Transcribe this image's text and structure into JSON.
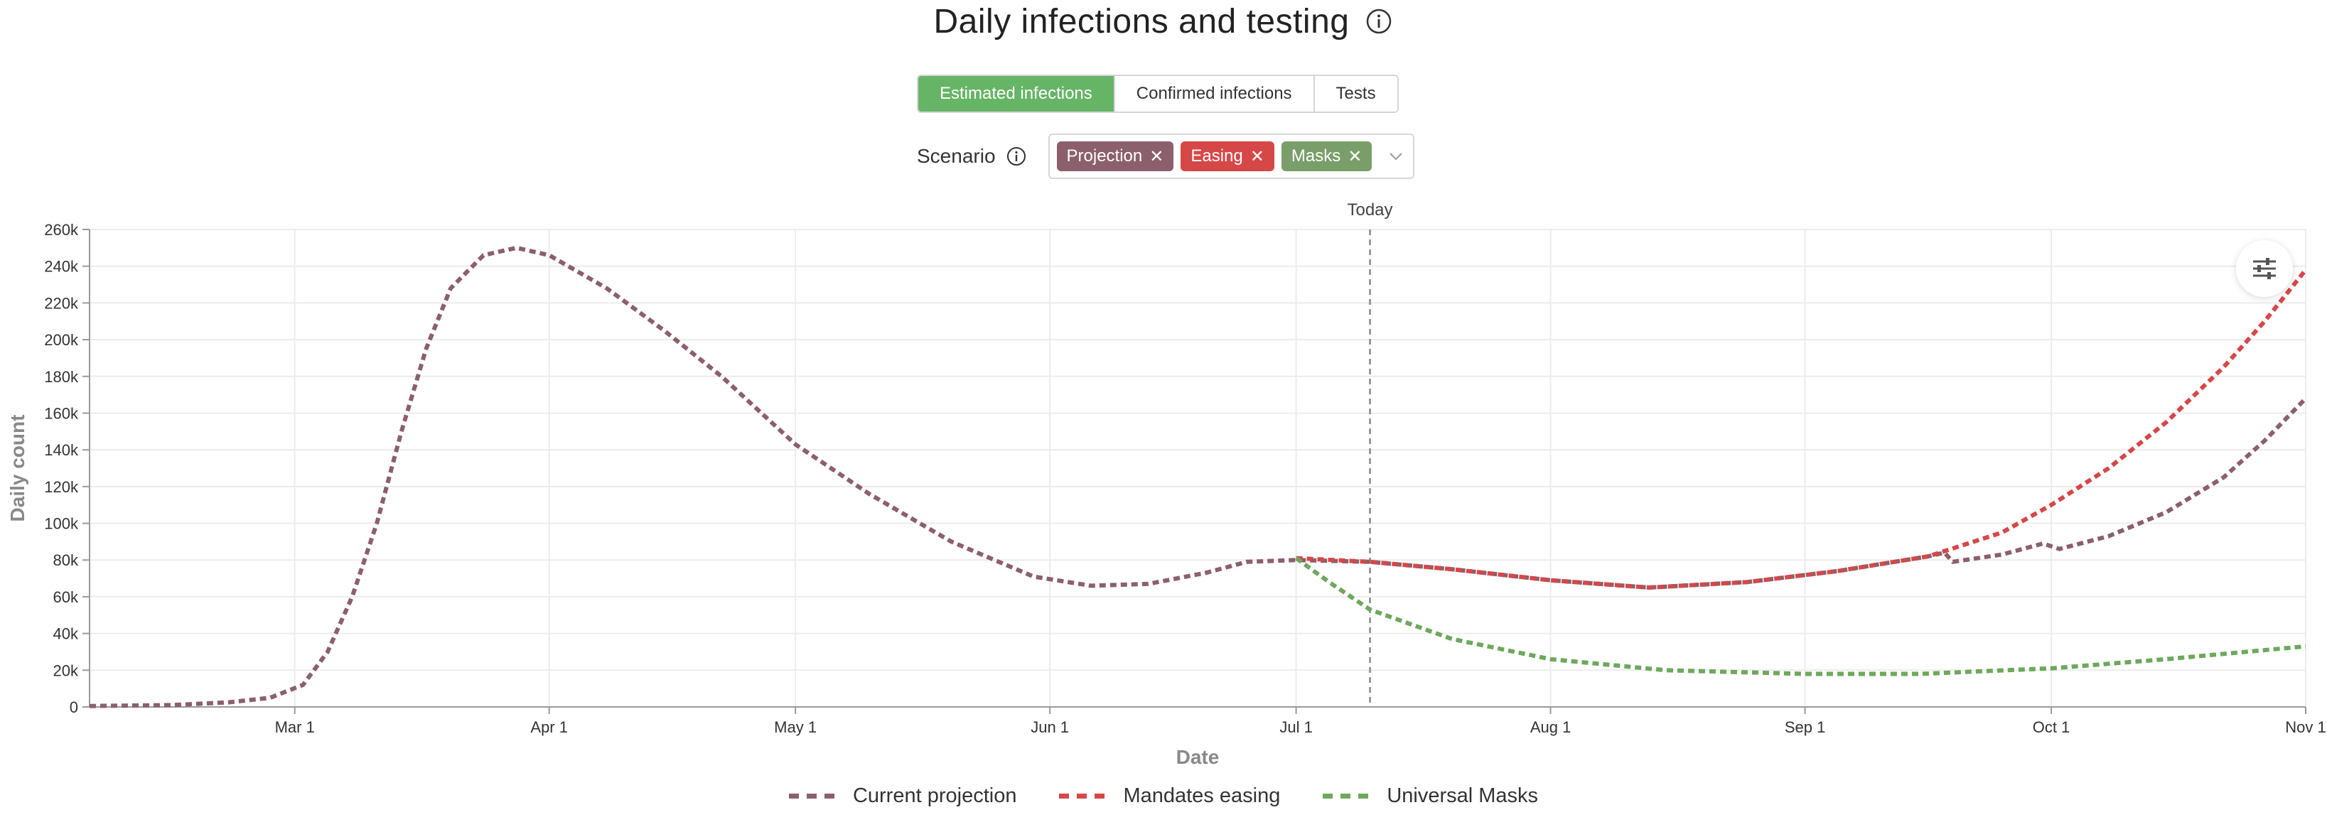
{
  "header": {
    "title": "Daily infections and testing",
    "tabs": [
      "Estimated infections",
      "Confirmed infections",
      "Tests"
    ],
    "active_tab": 0
  },
  "scenario": {
    "label": "Scenario",
    "tags": [
      {
        "label": "Projection",
        "color": "#8c5f6c"
      },
      {
        "label": "Easing",
        "color": "#d64747"
      },
      {
        "label": "Masks",
        "color": "#7a9e6a"
      }
    ]
  },
  "colors": {
    "tab_active": "#66b466",
    "projection": "#8c5f6c",
    "easing": "#d64747",
    "masks": "#6ea85c",
    "grid": "#ececec",
    "axis": "#9a9a9a"
  },
  "icons": {
    "title_info": "info-icon",
    "scenario_info": "info-icon",
    "dropdown": "chevron-down-icon",
    "settings": "sliders-icon"
  },
  "chart_data": {
    "type": "line",
    "xlabel": "Date",
    "ylabel": "Daily count",
    "x_range": [
      "2020-02-05",
      "2020-11-01"
    ],
    "ylim": [
      0,
      260000
    ],
    "y_ticks": [
      0,
      20000,
      40000,
      60000,
      80000,
      100000,
      120000,
      140000,
      160000,
      180000,
      200000,
      220000,
      240000,
      260000
    ],
    "y_tick_labels": [
      "0",
      "20k",
      "40k",
      "60k",
      "80k",
      "100k",
      "120k",
      "140k",
      "160k",
      "180k",
      "200k",
      "220k",
      "240k",
      "260k"
    ],
    "x_ticks": [
      "2020-03-01",
      "2020-04-01",
      "2020-05-01",
      "2020-06-01",
      "2020-07-01",
      "2020-08-01",
      "2020-09-01",
      "2020-10-01",
      "2020-11-01"
    ],
    "x_tick_labels": [
      "Mar 1",
      "Apr 1",
      "May 1",
      "Jun 1",
      "Jul 1",
      "Aug 1",
      "Sep 1",
      "Oct 1",
      "Nov 1"
    ],
    "grid": true,
    "legend_position": "bottom",
    "annotation": {
      "label": "Today",
      "date": "2020-07-10"
    },
    "series": [
      {
        "name": "Current projection",
        "color": "#8c5f6c",
        "points": [
          [
            "2020-02-05",
            500
          ],
          [
            "2020-02-15",
            1000
          ],
          [
            "2020-02-22",
            2500
          ],
          [
            "2020-02-27",
            5000
          ],
          [
            "2020-03-02",
            12000
          ],
          [
            "2020-03-05",
            30000
          ],
          [
            "2020-03-08",
            60000
          ],
          [
            "2020-03-11",
            100000
          ],
          [
            "2020-03-14",
            150000
          ],
          [
            "2020-03-17",
            195000
          ],
          [
            "2020-03-20",
            228000
          ],
          [
            "2020-03-24",
            246000
          ],
          [
            "2020-03-28",
            250000
          ],
          [
            "2020-04-01",
            246000
          ],
          [
            "2020-04-08",
            228000
          ],
          [
            "2020-04-15",
            205000
          ],
          [
            "2020-04-22",
            180000
          ],
          [
            "2020-05-01",
            143000
          ],
          [
            "2020-05-10",
            116000
          ],
          [
            "2020-05-20",
            90000
          ],
          [
            "2020-05-30",
            71000
          ],
          [
            "2020-06-06",
            66000
          ],
          [
            "2020-06-13",
            67000
          ],
          [
            "2020-06-20",
            73000
          ],
          [
            "2020-06-25",
            79000
          ],
          [
            "2020-07-01",
            80000
          ],
          [
            "2020-07-10",
            79000
          ],
          [
            "2020-07-20",
            75000
          ],
          [
            "2020-08-01",
            69000
          ],
          [
            "2020-08-13",
            65000
          ],
          [
            "2020-08-25",
            68000
          ],
          [
            "2020-09-05",
            74000
          ],
          [
            "2020-09-16",
            82000
          ],
          [
            "2020-09-18",
            84000
          ],
          [
            "2020-09-19",
            79000
          ],
          [
            "2020-09-25",
            83000
          ],
          [
            "2020-09-30",
            89000
          ],
          [
            "2020-10-02",
            86000
          ],
          [
            "2020-10-08",
            93000
          ],
          [
            "2020-10-15",
            106000
          ],
          [
            "2020-10-22",
            125000
          ],
          [
            "2020-10-27",
            145000
          ],
          [
            "2020-11-01",
            168000
          ]
        ]
      },
      {
        "name": "Mandates easing",
        "color": "#d64747",
        "points": [
          [
            "2020-07-01",
            81000
          ],
          [
            "2020-07-10",
            79000
          ],
          [
            "2020-07-20",
            75000
          ],
          [
            "2020-08-01",
            69000
          ],
          [
            "2020-08-13",
            65000
          ],
          [
            "2020-08-25",
            68000
          ],
          [
            "2020-09-05",
            74000
          ],
          [
            "2020-09-16",
            82000
          ],
          [
            "2020-09-25",
            95000
          ],
          [
            "2020-10-01",
            110000
          ],
          [
            "2020-10-08",
            130000
          ],
          [
            "2020-10-15",
            155000
          ],
          [
            "2020-10-22",
            185000
          ],
          [
            "2020-10-27",
            210000
          ],
          [
            "2020-11-01",
            238000
          ]
        ]
      },
      {
        "name": "Universal Masks",
        "color": "#6ea85c",
        "points": [
          [
            "2020-07-01",
            81000
          ],
          [
            "2020-07-05",
            68000
          ],
          [
            "2020-07-10",
            53000
          ],
          [
            "2020-07-20",
            37000
          ],
          [
            "2020-08-01",
            26000
          ],
          [
            "2020-08-15",
            20000
          ],
          [
            "2020-09-01",
            18000
          ],
          [
            "2020-09-15",
            18000
          ],
          [
            "2020-10-01",
            21000
          ],
          [
            "2020-10-15",
            26000
          ],
          [
            "2020-11-01",
            33000
          ]
        ]
      }
    ]
  }
}
